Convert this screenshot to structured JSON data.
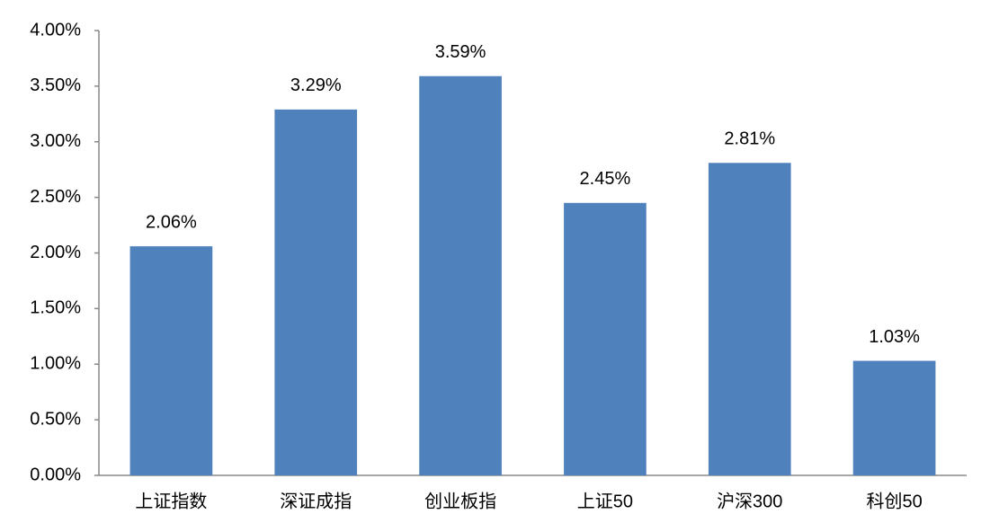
{
  "chart_data": {
    "type": "bar",
    "categories": [
      "上证指数",
      "深证成指",
      "创业板指",
      "上证50",
      "沪深300",
      "科创50"
    ],
    "values": [
      2.06,
      3.29,
      3.59,
      2.45,
      2.81,
      1.03
    ],
    "value_labels": [
      "2.06%",
      "3.29%",
      "3.59%",
      "2.45%",
      "2.81%",
      "1.03%"
    ],
    "color": "#4f81bd",
    "ylim": [
      0,
      4
    ],
    "yticks": [
      {
        "value": 0,
        "label": "0.00%"
      },
      {
        "value": 0.5,
        "label": "0.50%"
      },
      {
        "value": 1,
        "label": "1.00%"
      },
      {
        "value": 1.5,
        "label": "1.50%"
      },
      {
        "value": 2,
        "label": "2.00%"
      },
      {
        "value": 2.5,
        "label": "2.50%"
      },
      {
        "value": 3,
        "label": "3.00%"
      },
      {
        "value": 3.5,
        "label": "3.50%"
      },
      {
        "value": 4,
        "label": "4.00%"
      }
    ],
    "grid": false
  }
}
